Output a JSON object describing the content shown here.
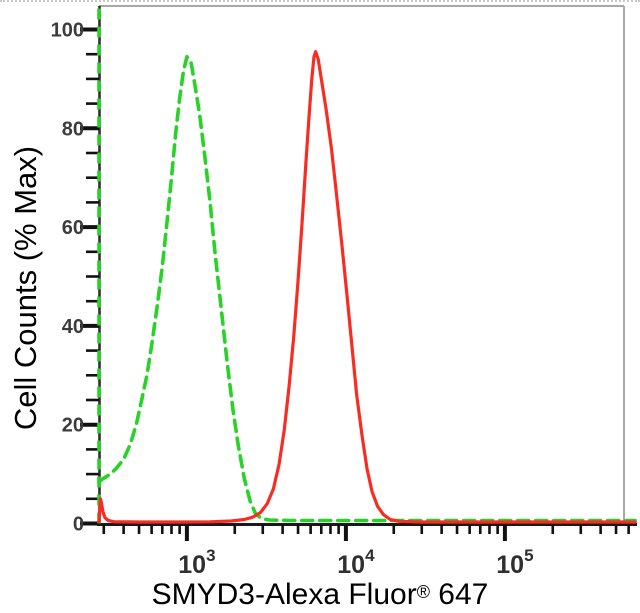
{
  "figure": {
    "background": "#ffffff",
    "frame_color": "#a8a8a8",
    "axis_color": "#2e2e2e",
    "tick_color": "#111111",
    "tick_label_color": "#3c3c3c",
    "title_color": "#000000"
  },
  "chart_data": {
    "type": "line",
    "subtype": "flow-cytometry-histogram-overlay",
    "title": "",
    "xlabel_parts": {
      "pre": "SMYD3-Alexa Fluor",
      "sup": "®",
      "post": " 647"
    },
    "xlabel_full": "SMYD3-Alexa Fluor® 647",
    "ylabel": "Cell Counts (% Max)",
    "x_scale": "log",
    "x_range": [
      280,
      660000
    ],
    "y_range": [
      0,
      105
    ],
    "grid": false,
    "legend": "none",
    "y_ticks_major": [
      {
        "value": 0,
        "label": "0"
      },
      {
        "value": 20,
        "label": "20"
      },
      {
        "value": 40,
        "label": "40"
      },
      {
        "value": 60,
        "label": "60"
      },
      {
        "value": 80,
        "label": "80"
      },
      {
        "value": 100,
        "label": "100"
      }
    ],
    "y_ticks_minor": [
      5,
      10,
      15,
      25,
      30,
      35,
      45,
      50,
      55,
      65,
      70,
      75,
      85,
      90,
      95
    ],
    "x_ticks_major": [
      {
        "value": 1000,
        "base": "10",
        "exponent": "3"
      },
      {
        "value": 10000,
        "base": "10",
        "exponent": "4"
      },
      {
        "value": 100000,
        "base": "10",
        "exponent": "5"
      }
    ],
    "x_ticks_minor": [
      300,
      400,
      500,
      600,
      700,
      800,
      900,
      2000,
      3000,
      4000,
      5000,
      6000,
      7000,
      8000,
      9000,
      20000,
      30000,
      40000,
      50000,
      60000,
      70000,
      80000,
      90000,
      200000,
      300000,
      400000,
      500000,
      600000
    ],
    "series": [
      {
        "name": "green-dashed-curve",
        "color": "#28d228",
        "style": "dashed",
        "stroke_width": 3.6,
        "peak": {
          "x": 1000,
          "pct": 94.5
        },
        "edge_line": {
          "x": 280,
          "from_pct": 0,
          "to_pct": 104.5
        },
        "points": [
          [
            280,
            8.5
          ],
          [
            300,
            9.2
          ],
          [
            330,
            10
          ],
          [
            360,
            11.2
          ],
          [
            400,
            13
          ],
          [
            440,
            16
          ],
          [
            480,
            20
          ],
          [
            520,
            25
          ],
          [
            560,
            30
          ],
          [
            600,
            36
          ],
          [
            650,
            44
          ],
          [
            700,
            52
          ],
          [
            750,
            61
          ],
          [
            800,
            70
          ],
          [
            850,
            79
          ],
          [
            900,
            86
          ],
          [
            950,
            91.5
          ],
          [
            1000,
            94.5
          ],
          [
            1060,
            93.5
          ],
          [
            1120,
            89
          ],
          [
            1200,
            83
          ],
          [
            1300,
            74
          ],
          [
            1400,
            65
          ],
          [
            1500,
            55
          ],
          [
            1650,
            43
          ],
          [
            1800,
            32
          ],
          [
            1950,
            23
          ],
          [
            2100,
            16
          ],
          [
            2300,
            9
          ],
          [
            2500,
            4.5
          ],
          [
            2700,
            2
          ],
          [
            2950,
            1
          ],
          [
            3300,
            0.7
          ],
          [
            4500,
            0.6
          ],
          [
            8000,
            0.6
          ],
          [
            20000,
            0.6
          ],
          [
            60000,
            0.6
          ],
          [
            200000,
            0.6
          ],
          [
            660000,
            0.6
          ]
        ]
      },
      {
        "name": "red-solid-curve",
        "color": "#f92c23",
        "style": "solid",
        "stroke_width": 3.2,
        "peak": {
          "x": 6450,
          "pct": 95.5
        },
        "edge_line": null,
        "points": [
          [
            280,
            0.3
          ],
          [
            283,
            2.5
          ],
          [
            286,
            5
          ],
          [
            290,
            4.2
          ],
          [
            296,
            2.5
          ],
          [
            305,
            1.2
          ],
          [
            320,
            0.6
          ],
          [
            350,
            0.35
          ],
          [
            500,
            0.3
          ],
          [
            900,
            0.3
          ],
          [
            1400,
            0.35
          ],
          [
            1900,
            0.5
          ],
          [
            2300,
            0.8
          ],
          [
            2600,
            1.3
          ],
          [
            2900,
            2.2
          ],
          [
            3200,
            4
          ],
          [
            3500,
            7
          ],
          [
            3800,
            12
          ],
          [
            4100,
            19
          ],
          [
            4400,
            28
          ],
          [
            4700,
            38
          ],
          [
            5000,
            49
          ],
          [
            5300,
            61
          ],
          [
            5600,
            73
          ],
          [
            5850,
            82
          ],
          [
            6100,
            90
          ],
          [
            6300,
            94.5
          ],
          [
            6450,
            95.5
          ],
          [
            6700,
            94
          ],
          [
            7000,
            90
          ],
          [
            7500,
            84
          ],
          [
            8100,
            76
          ],
          [
            8700,
            67
          ],
          [
            9400,
            57
          ],
          [
            10100,
            47
          ],
          [
            10900,
            36
          ],
          [
            11700,
            26
          ],
          [
            12600,
            18
          ],
          [
            13600,
            11
          ],
          [
            14600,
            6.5
          ],
          [
            15800,
            3.5
          ],
          [
            17200,
            1.8
          ],
          [
            19000,
            0.8
          ],
          [
            21500,
            0.45
          ],
          [
            30000,
            0.3
          ],
          [
            80000,
            0.3
          ],
          [
            250000,
            0.3
          ],
          [
            660000,
            0.3
          ]
        ]
      }
    ]
  }
}
